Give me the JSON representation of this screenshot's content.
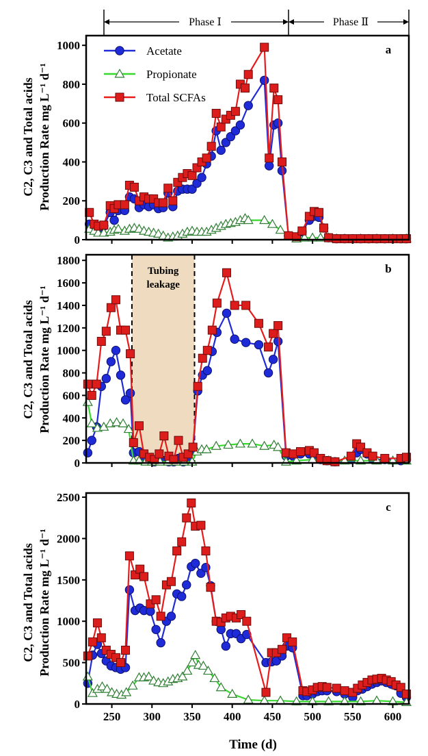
{
  "figure": {
    "phase_labels": [
      "Phase Ⅰ",
      "Phase Ⅱ"
    ],
    "xlabel": "Time (d)",
    "ylabel_line1": "C2, C3 and Total acids",
    "ylabel_line2": "Production Rate mg L⁻¹ d⁻¹",
    "legend": [
      "Acetate",
      "Propionate",
      "Total SCFAs"
    ],
    "colors": {
      "acetate": "#1f2bd6",
      "propionate": "#39d82f",
      "total": "#e81b1b",
      "marker_total": "#dd1c1c",
      "shade": "#efdcc0"
    },
    "annotation": "Tubing leakage",
    "x_ticks": [
      250,
      300,
      350,
      400,
      450,
      500,
      550,
      600
    ],
    "xlim": [
      218,
      620
    ],
    "phase_bounds": [
      218,
      465,
      620
    ]
  },
  "chart_data": [
    {
      "type": "line",
      "panel": "a",
      "ylim": [
        0,
        1050
      ],
      "y_ticks": [
        0,
        200,
        400,
        600,
        800,
        1000
      ],
      "series": [
        {
          "name": "Acetate",
          "x": [
            222,
            228,
            233,
            240,
            248,
            253,
            258,
            266,
            272,
            278,
            284,
            290,
            296,
            302,
            308,
            314,
            320,
            326,
            332,
            338,
            344,
            350,
            356,
            362,
            368,
            374,
            380,
            386,
            392,
            398,
            404,
            410,
            420,
            440,
            446,
            452,
            457,
            462,
            470,
            480,
            487,
            496,
            502,
            508,
            514,
            520,
            530,
            540,
            550,
            560,
            570,
            580,
            590,
            600,
            610,
            617
          ],
          "values": [
            80,
            60,
            50,
            70,
            140,
            100,
            150,
            150,
            220,
            210,
            165,
            180,
            170,
            180,
            160,
            165,
            240,
            170,
            250,
            260,
            260,
            260,
            290,
            320,
            390,
            430,
            560,
            460,
            500,
            530,
            560,
            590,
            690,
            820,
            380,
            590,
            600,
            355,
            20,
            10,
            40,
            100,
            120,
            115,
            60,
            10,
            5,
            5,
            5,
            5,
            5,
            5,
            5,
            5,
            5,
            5
          ]
        },
        {
          "name": "Propionate",
          "x": [
            222,
            228,
            233,
            240,
            248,
            253,
            258,
            266,
            272,
            278,
            284,
            290,
            296,
            302,
            308,
            314,
            320,
            326,
            332,
            338,
            344,
            350,
            356,
            362,
            368,
            374,
            380,
            386,
            392,
            398,
            404,
            410,
            416,
            420,
            440,
            450,
            460,
            470,
            480,
            490,
            500,
            510,
            520,
            530,
            540,
            560,
            580,
            600,
            617
          ],
          "values": [
            55,
            45,
            35,
            35,
            40,
            50,
            55,
            45,
            55,
            60,
            55,
            45,
            40,
            35,
            30,
            20,
            10,
            15,
            20,
            30,
            40,
            45,
            40,
            40,
            40,
            50,
            60,
            70,
            80,
            85,
            90,
            100,
            110,
            100,
            100,
            80,
            50,
            20,
            5,
            10,
            10,
            10,
            10,
            5,
            5,
            5,
            5,
            5,
            5
          ]
        },
        {
          "name": "Total SCFAs",
          "x": [
            222,
            228,
            233,
            240,
            248,
            253,
            258,
            266,
            272,
            278,
            284,
            290,
            296,
            302,
            308,
            314,
            320,
            326,
            332,
            338,
            344,
            350,
            356,
            362,
            368,
            374,
            380,
            386,
            392,
            398,
            404,
            410,
            416,
            420,
            440,
            446,
            452,
            457,
            462,
            470,
            480,
            487,
            496,
            502,
            508,
            514,
            520,
            530,
            540,
            550,
            560,
            570,
            580,
            590,
            600,
            610,
            617
          ],
          "values": [
            140,
            80,
            70,
            75,
            175,
            160,
            180,
            180,
            280,
            270,
            200,
            220,
            210,
            210,
            190,
            190,
            265,
            200,
            295,
            320,
            340,
            330,
            370,
            400,
            420,
            480,
            650,
            580,
            620,
            640,
            660,
            800,
            780,
            850,
            990,
            420,
            780,
            720,
            400,
            20,
            15,
            45,
            120,
            145,
            140,
            60,
            10,
            5,
            5,
            5,
            5,
            5,
            5,
            5,
            5,
            5,
            5
          ]
        }
      ]
    },
    {
      "type": "line",
      "panel": "b",
      "ylim": [
        0,
        1850
      ],
      "y_ticks": [
        0,
        200,
        400,
        600,
        800,
        1000,
        1200,
        1400,
        1600,
        1800
      ],
      "shade_range": [
        275,
        353
      ],
      "series": [
        {
          "name": "Acetate",
          "x": [
            220,
            225,
            231,
            237,
            243,
            249,
            255,
            261,
            267,
            273,
            277,
            284,
            290,
            297,
            303,
            309,
            315,
            321,
            327,
            333,
            339,
            345,
            351,
            357,
            363,
            369,
            375,
            381,
            393,
            403,
            417,
            433,
            445,
            451,
            457,
            467,
            476,
            485,
            496,
            502,
            510,
            518,
            528,
            548,
            555,
            560,
            568,
            575,
            590,
            610,
            617
          ],
          "values": [
            90,
            200,
            320,
            680,
            750,
            900,
            1000,
            780,
            560,
            620,
            90,
            100,
            30,
            20,
            10,
            40,
            20,
            10,
            10,
            40,
            10,
            20,
            110,
            640,
            780,
            820,
            990,
            1160,
            1330,
            1100,
            1070,
            1050,
            800,
            920,
            1080,
            60,
            60,
            80,
            80,
            60,
            30,
            20,
            10,
            30,
            90,
            120,
            80,
            30,
            30,
            20,
            30
          ]
        },
        {
          "name": "Propionate",
          "x": [
            220,
            225,
            232,
            240,
            248,
            256,
            264,
            271,
            277,
            284,
            292,
            300,
            310,
            320,
            330,
            340,
            350,
            356,
            362,
            368,
            380,
            395,
            410,
            425,
            440,
            452,
            457,
            467,
            480,
            500,
            520,
            540,
            560,
            580,
            600,
            617
          ],
          "values": [
            540,
            350,
            310,
            320,
            350,
            360,
            350,
            300,
            20,
            20,
            10,
            10,
            10,
            10,
            10,
            10,
            10,
            100,
            120,
            120,
            150,
            160,
            170,
            170,
            150,
            160,
            140,
            10,
            20,
            30,
            20,
            20,
            20,
            20,
            20,
            20
          ]
        },
        {
          "name": "Total SCFAs",
          "x": [
            220,
            225,
            231,
            237,
            243,
            249,
            255,
            261,
            267,
            273,
            277,
            284,
            290,
            297,
            303,
            309,
            315,
            321,
            327,
            333,
            339,
            345,
            351,
            357,
            363,
            369,
            375,
            381,
            393,
            403,
            417,
            433,
            445,
            451,
            457,
            467,
            476,
            485,
            496,
            502,
            510,
            518,
            528,
            548,
            555,
            560,
            568,
            575,
            590,
            610,
            617
          ],
          "values": [
            700,
            600,
            700,
            1080,
            1170,
            1380,
            1450,
            1180,
            1180,
            970,
            180,
            330,
            80,
            50,
            30,
            80,
            240,
            60,
            30,
            200,
            50,
            80,
            140,
            680,
            930,
            1000,
            1180,
            1420,
            1690,
            1400,
            1400,
            1240,
            1030,
            1150,
            1220,
            90,
            80,
            100,
            110,
            90,
            40,
            20,
            10,
            60,
            170,
            140,
            90,
            60,
            40,
            40,
            50
          ]
        }
      ]
    },
    {
      "type": "line",
      "panel": "c",
      "ylim": [
        0,
        2550
      ],
      "y_ticks": [
        0,
        500,
        1000,
        1500,
        2000,
        2500
      ],
      "series": [
        {
          "name": "Acetate",
          "x": [
            220,
            226,
            232,
            237,
            243,
            249,
            255,
            261,
            267,
            272,
            279,
            285,
            290,
            298,
            305,
            311,
            318,
            324,
            331,
            337,
            343,
            349,
            354,
            361,
            367,
            373,
            380,
            386,
            392,
            398,
            405,
            411,
            418,
            442,
            449,
            455,
            462,
            468,
            475,
            488,
            493,
            500,
            506,
            512,
            518,
            530,
            540,
            550,
            556,
            562,
            568,
            574,
            580,
            586,
            592,
            598,
            604,
            610,
            617
          ],
          "values": [
            250,
            590,
            720,
            610,
            520,
            460,
            440,
            420,
            440,
            1380,
            1130,
            1160,
            1130,
            1120,
            900,
            740,
            1000,
            1060,
            1330,
            1300,
            1440,
            1660,
            1700,
            1580,
            1650,
            1430,
            1000,
            900,
            700,
            850,
            850,
            790,
            840,
            500,
            510,
            520,
            580,
            700,
            680,
            100,
            100,
            120,
            150,
            160,
            160,
            150,
            120,
            80,
            160,
            180,
            210,
            240,
            260,
            280,
            260,
            240,
            220,
            130,
            80
          ]
        },
        {
          "name": "Propionate",
          "x": [
            220,
            226,
            232,
            238,
            244,
            250,
            256,
            262,
            268,
            276,
            284,
            290,
            296,
            302,
            308,
            314,
            320,
            326,
            332,
            338,
            344,
            350,
            354,
            358,
            364,
            370,
            378,
            386,
            400,
            420,
            440,
            460,
            480,
            500,
            520,
            540,
            560,
            580,
            600,
            617
          ],
          "values": [
            330,
            130,
            180,
            210,
            180,
            140,
            120,
            110,
            140,
            220,
            320,
            320,
            330,
            280,
            260,
            250,
            270,
            300,
            310,
            330,
            400,
            500,
            590,
            470,
            460,
            400,
            310,
            200,
            120,
            50,
            40,
            40,
            30,
            30,
            30,
            30,
            30,
            40,
            30,
            20
          ]
        },
        {
          "name": "Total SCFAs",
          "x": [
            220,
            226,
            232,
            237,
            243,
            249,
            255,
            261,
            267,
            272,
            279,
            285,
            290,
            298,
            305,
            311,
            318,
            324,
            331,
            337,
            343,
            349,
            354,
            361,
            367,
            373,
            380,
            386,
            392,
            398,
            405,
            411,
            418,
            442,
            449,
            455,
            462,
            468,
            475,
            488,
            493,
            500,
            506,
            512,
            518,
            530,
            540,
            550,
            556,
            562,
            568,
            574,
            580,
            586,
            592,
            598,
            604,
            610,
            617
          ],
          "values": [
            580,
            750,
            980,
            800,
            650,
            600,
            560,
            500,
            650,
            1790,
            1560,
            1630,
            1540,
            1210,
            1260,
            1060,
            1440,
            1480,
            1850,
            1960,
            2250,
            2430,
            2150,
            2160,
            1850,
            1410,
            1000,
            990,
            1040,
            1060,
            1040,
            1080,
            1000,
            140,
            620,
            620,
            660,
            800,
            750,
            160,
            150,
            170,
            200,
            210,
            200,
            190,
            160,
            140,
            190,
            230,
            260,
            290,
            300,
            310,
            290,
            270,
            230,
            200,
            120
          ]
        }
      ]
    }
  ]
}
